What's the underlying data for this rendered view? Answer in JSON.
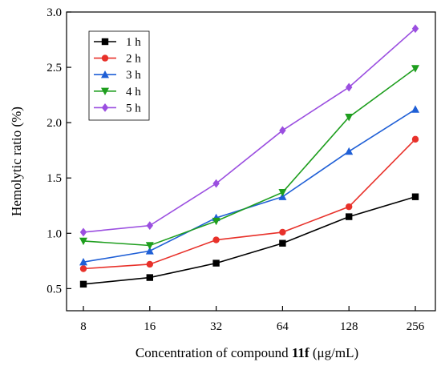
{
  "chart_data": {
    "type": "line",
    "title": "",
    "xlabel_parts": [
      "Concentration of compound ",
      "11f",
      " (μg/mL)"
    ],
    "ylabel": "Hemolytic ratio (%)",
    "categories": [
      "8",
      "16",
      "32",
      "64",
      "128",
      "256"
    ],
    "ylim": [
      0.3,
      3.0
    ],
    "yticks": [
      "0.5",
      "1.0",
      "1.5",
      "2.0",
      "2.5",
      "3.0"
    ],
    "grid": false,
    "legend_position": "top-left",
    "series": [
      {
        "name": "1 h",
        "color": "#000000",
        "marker": "square",
        "values": [
          0.54,
          0.6,
          0.73,
          0.91,
          1.15,
          1.33
        ]
      },
      {
        "name": "2 h",
        "color": "#e8312a",
        "marker": "circle",
        "values": [
          0.68,
          0.72,
          0.94,
          1.01,
          1.24,
          1.85
        ]
      },
      {
        "name": "3 h",
        "color": "#1f5fd6",
        "marker": "triangle-up",
        "values": [
          0.74,
          0.84,
          1.14,
          1.33,
          1.74,
          2.12
        ]
      },
      {
        "name": "4 h",
        "color": "#1e9e1e",
        "marker": "triangle-down",
        "values": [
          0.93,
          0.89,
          1.11,
          1.37,
          2.05,
          2.49
        ]
      },
      {
        "name": "5 h",
        "color": "#9b4fe0",
        "marker": "diamond",
        "values": [
          1.01,
          1.07,
          1.45,
          1.93,
          2.32,
          2.85
        ]
      }
    ]
  }
}
